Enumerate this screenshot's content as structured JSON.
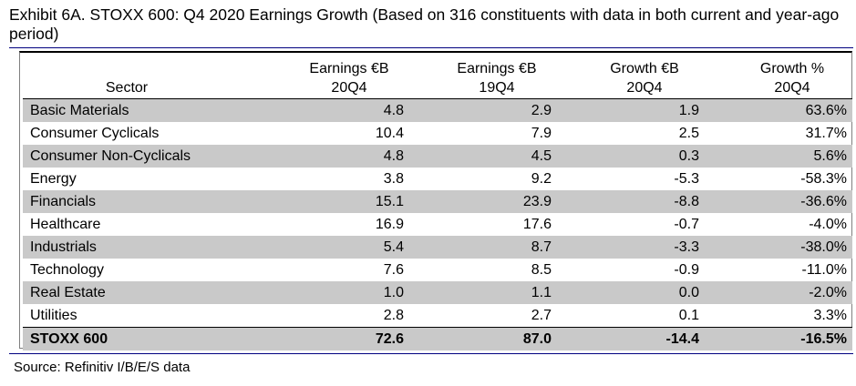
{
  "title": "Exhibit 6A.  STOXX 600: Q4 2020 Earnings Growth (Based on 316 constituents with data in both current and year-ago period)",
  "table": {
    "headers": {
      "sector": "Sector",
      "earnings_20q4": [
        "Earnings €B",
        "20Q4"
      ],
      "earnings_19q4": [
        "Earnings €B",
        "19Q4"
      ],
      "growth_eur": [
        "Growth €B",
        "20Q4"
      ],
      "growth_pct": [
        "Growth %",
        "20Q4"
      ]
    },
    "rows": [
      {
        "sector": "Basic Materials",
        "earnings_20q4": "4.8",
        "earnings_19q4": "2.9",
        "growth_eur": "1.9",
        "growth_pct": "63.6%"
      },
      {
        "sector": "Consumer Cyclicals",
        "earnings_20q4": "10.4",
        "earnings_19q4": "7.9",
        "growth_eur": "2.5",
        "growth_pct": "31.7%"
      },
      {
        "sector": "Consumer Non-Cyclicals",
        "earnings_20q4": "4.8",
        "earnings_19q4": "4.5",
        "growth_eur": "0.3",
        "growth_pct": "5.6%"
      },
      {
        "sector": "Energy",
        "earnings_20q4": "3.8",
        "earnings_19q4": "9.2",
        "growth_eur": "-5.3",
        "growth_pct": "-58.3%"
      },
      {
        "sector": "Financials",
        "earnings_20q4": "15.1",
        "earnings_19q4": "23.9",
        "growth_eur": "-8.8",
        "growth_pct": "-36.6%"
      },
      {
        "sector": "Healthcare",
        "earnings_20q4": "16.9",
        "earnings_19q4": "17.6",
        "growth_eur": "-0.7",
        "growth_pct": "-4.0%"
      },
      {
        "sector": "Industrials",
        "earnings_20q4": "5.4",
        "earnings_19q4": "8.7",
        "growth_eur": "-3.3",
        "growth_pct": "-38.0%"
      },
      {
        "sector": "Technology",
        "earnings_20q4": "7.6",
        "earnings_19q4": "8.5",
        "growth_eur": "-0.9",
        "growth_pct": "-11.0%"
      },
      {
        "sector": "Real Estate",
        "earnings_20q4": "1.0",
        "earnings_19q4": "1.1",
        "growth_eur": "0.0",
        "growth_pct": "-2.0%"
      },
      {
        "sector": "Utilities",
        "earnings_20q4": "2.8",
        "earnings_19q4": "2.7",
        "growth_eur": "0.1",
        "growth_pct": "3.3%"
      }
    ],
    "total": {
      "sector": "STOXX 600",
      "earnings_20q4": "72.6",
      "earnings_19q4": "87.0",
      "growth_eur": "-14.4",
      "growth_pct": "-16.5%"
    }
  },
  "source": "Source: Refinitiv I/B/E/S data",
  "colors": {
    "shade": "#c9c9c9",
    "rule": "#000080"
  }
}
